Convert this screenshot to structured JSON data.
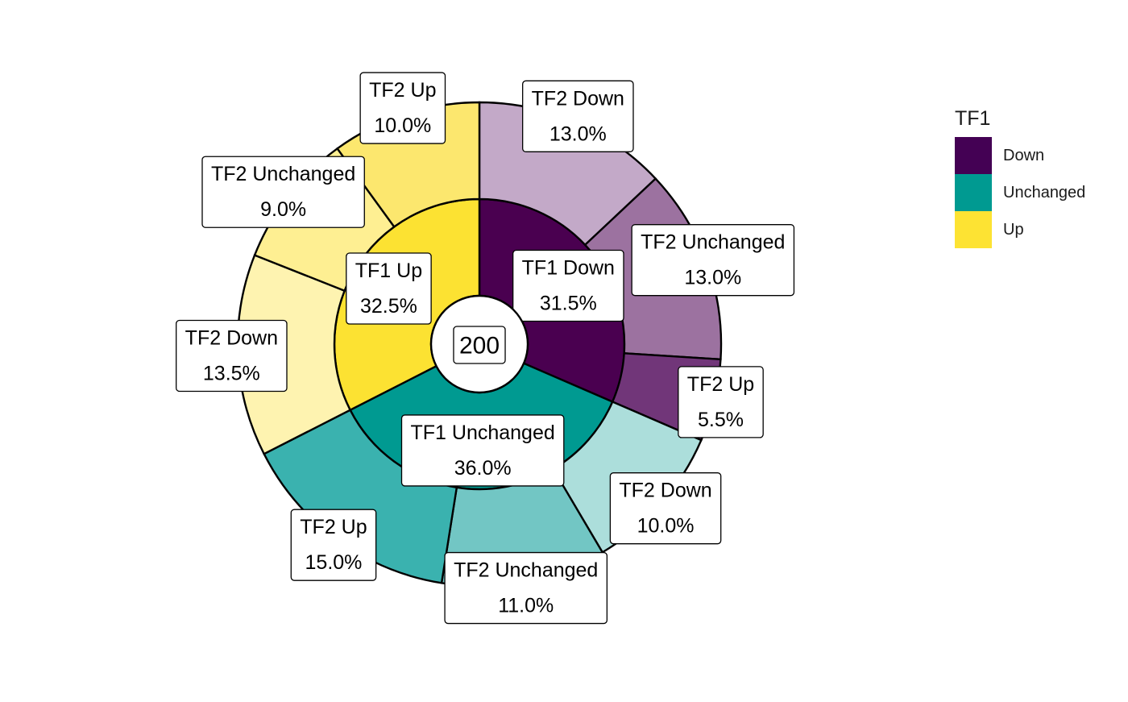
{
  "chart_data": {
    "type": "pie",
    "subtype": "nested-donut",
    "total": "200",
    "legend": {
      "title": "TF1",
      "placement": "right",
      "entries": [
        {
          "label": "Down",
          "color": "#440154"
        },
        {
          "label": "Unchanged",
          "color": "#009A91"
        },
        {
          "label": "Up",
          "color": "#FDE333"
        }
      ]
    },
    "inner_ring": [
      {
        "label": "TF1 Down",
        "value": 31.5,
        "value_label": "31.5%",
        "color": "#4A0050"
      },
      {
        "label": "TF1 Unchanged",
        "value": 36.0,
        "value_label": "36.0%",
        "color": "#009A91"
      },
      {
        "label": "TF1 Up",
        "value": 32.5,
        "value_label": "32.5%",
        "color": "#FCE232"
      }
    ],
    "outer_ring": [
      {
        "parent": "TF1 Down",
        "label": "TF2 Down",
        "value": 13.0,
        "value_label": "13.0%",
        "color": "#C3A9C8"
      },
      {
        "parent": "TF1 Down",
        "label": "TF2 Unchanged",
        "value": 13.0,
        "value_label": "13.0%",
        "color": "#9C72A0"
      },
      {
        "parent": "TF1 Down",
        "label": "TF2 Up",
        "value": 5.5,
        "value_label": "5.5%",
        "color": "#713679"
      },
      {
        "parent": "TF1 Unchanged",
        "label": "TF2 Down",
        "value": 10.0,
        "value_label": "10.0%",
        "color": "#ACDEDB"
      },
      {
        "parent": "TF1 Unchanged",
        "label": "TF2 Unchanged",
        "value": 11.0,
        "value_label": "11.0%",
        "color": "#72C6C4"
      },
      {
        "parent": "TF1 Unchanged",
        "label": "TF2 Up",
        "value": 15.0,
        "value_label": "15.0%",
        "color": "#3AB2AF"
      },
      {
        "parent": "TF1 Up",
        "label": "TF2 Down",
        "value": 13.5,
        "value_label": "13.5%",
        "color": "#FEF3B0"
      },
      {
        "parent": "TF1 Up",
        "label": "TF2 Unchanged",
        "value": 9.0,
        "value_label": "9.0%",
        "color": "#FEEF92"
      },
      {
        "parent": "TF1 Up",
        "label": "TF2 Up",
        "value": 10.0,
        "value_label": "10.0%",
        "color": "#FCE76E"
      }
    ]
  }
}
